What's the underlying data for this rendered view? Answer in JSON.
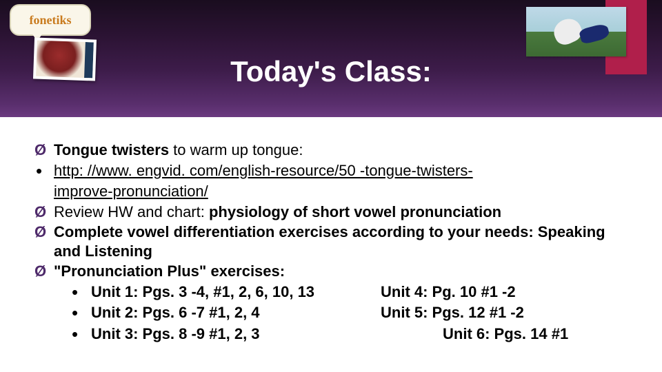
{
  "header": {
    "logo_text": "fonetiks",
    "title": "Today's Class:",
    "colors": {
      "banner_gradient_top": "#1a0d1f",
      "banner_gradient_bottom": "#6b3a80",
      "accent_box": "#b01f4b",
      "title_color": "#ffffff"
    }
  },
  "bullets": {
    "arrow_color": "#4e2a6a",
    "item1_bold": "Tongue twisters ",
    "item1_rest": "to warm up tongue:",
    "link_line1": "http: //www. engvid. com/english-resource/50 -tongue-twisters-",
    "link_line2": "improve-pronunciation/",
    "item2_pre": "Review HW and chart: ",
    "item2_bold": "physiology of short vowel pronunciation",
    "item3_pre": "Complete ",
    "item3_bold": "vowel differentiation exercises ",
    "item3_post": "according to your needs: Speaking and Listening",
    "item4_bold": "\"Pronunciation Plus\" ",
    "item4_rest": "exercises:",
    "units": {
      "u1": "Unit 1: Pgs. 3 -4, #1, 2, 6, 10, 13",
      "u2": "Unit 2: Pgs. 6 -7 #1, 2, 4",
      "u3": "Unit 3: Pgs. 8 -9 #1, 2, 3",
      "u4": "Unit 4: Pg. 10 #1 -2",
      "u5": "Unit 5: Pgs. 12 #1 -2",
      "u6": "Unit 6: Pgs. 14 #1"
    }
  }
}
